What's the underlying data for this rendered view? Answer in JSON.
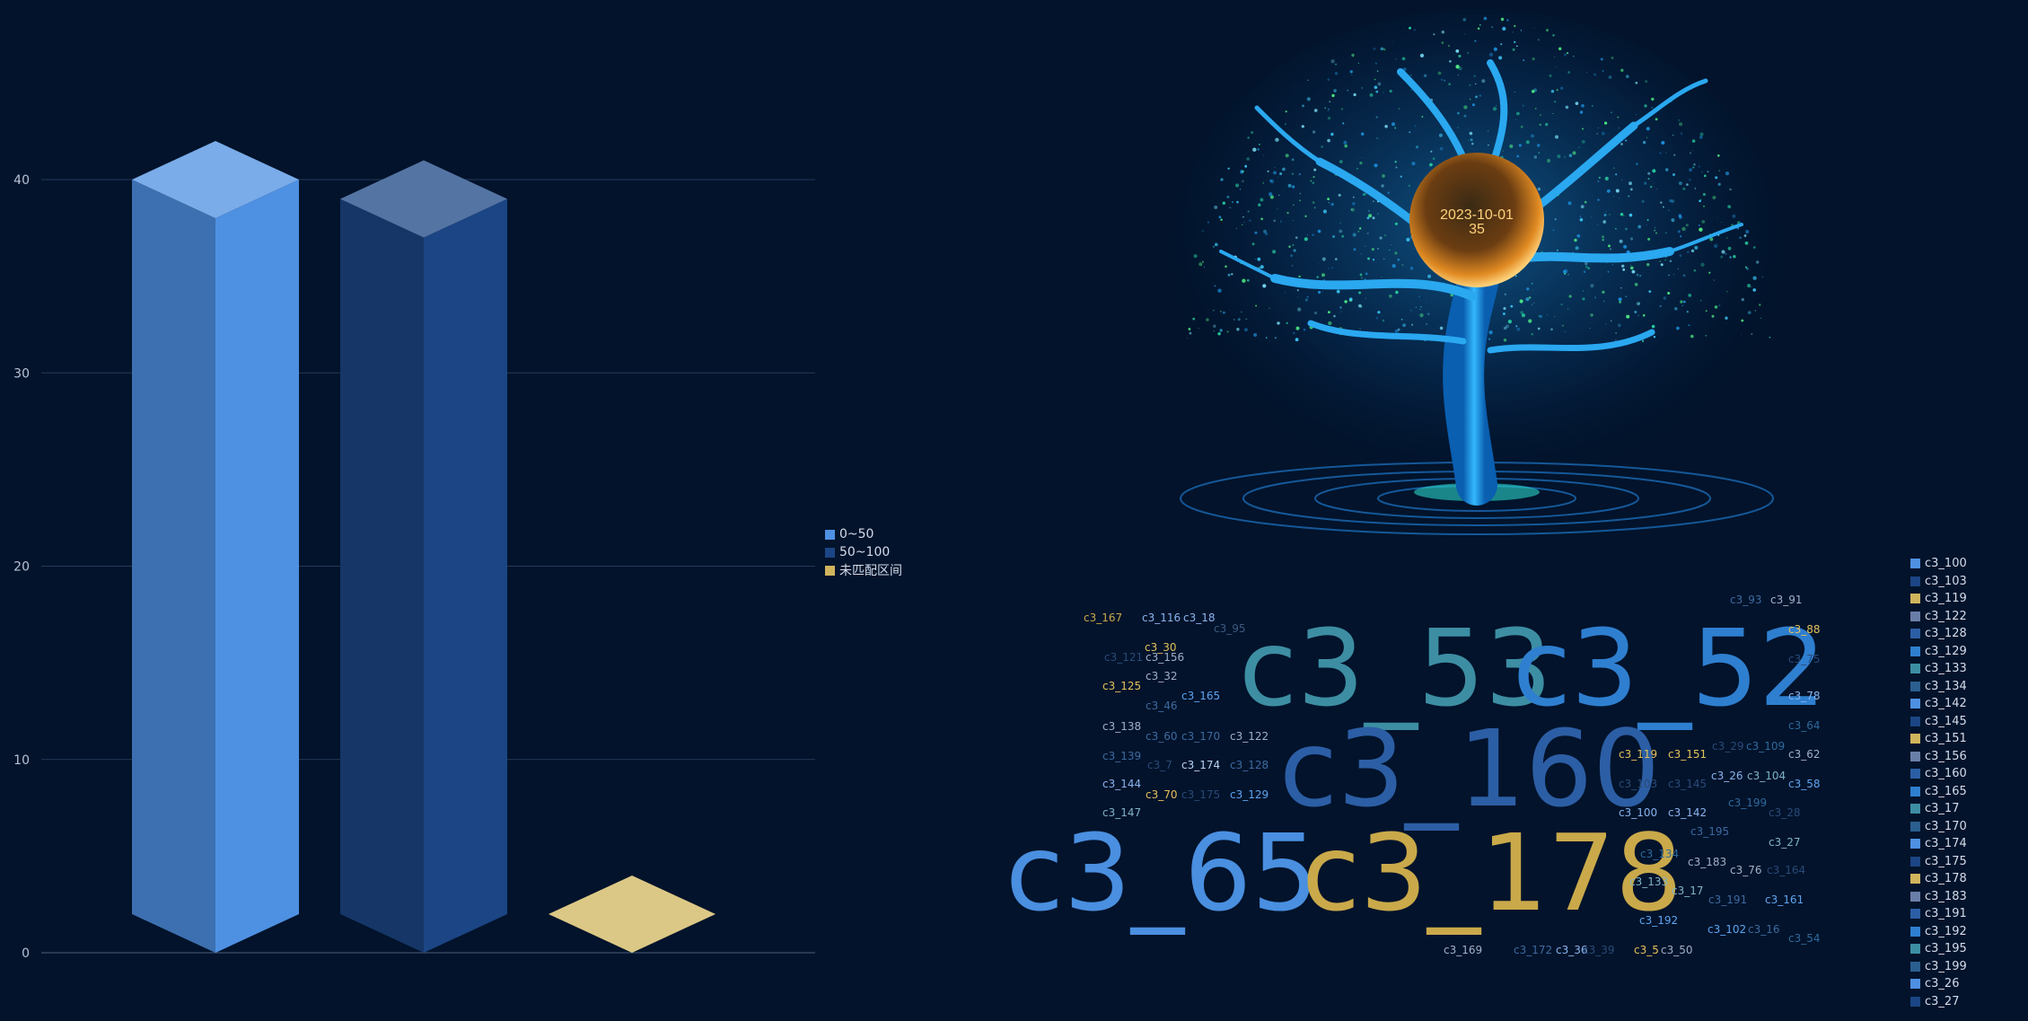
{
  "bar_chart": {
    "type": "bar",
    "categories": [
      "0~50",
      "50~100",
      "未匹配区间"
    ],
    "values": [
      40,
      39,
      2
    ],
    "ylim": [
      0,
      40
    ],
    "yticks": [
      "0",
      "10",
      "20",
      "30",
      "40"
    ],
    "grid": true,
    "legend": {
      "placement": "right",
      "items": [
        {
          "label": "0~50",
          "color": "#4e90e2"
        },
        {
          "label": "50~100",
          "color": "#1b4584"
        },
        {
          "label": "未匹配区间",
          "color": "#d0b55d"
        }
      ]
    }
  },
  "chart_data": {
    "type": "bar",
    "categories": [
      "0~50",
      "50~100",
      "未匹配区间"
    ],
    "values": [
      40,
      39,
      2
    ],
    "ylim": [
      0,
      40
    ]
  },
  "tree": {
    "date": "2023-10-01",
    "value": "35"
  },
  "word_cloud": {
    "words": [
      {
        "text": "c3_53",
        "size": 118,
        "color": "#3d8ea3"
      },
      {
        "text": "c3_52",
        "size": 118,
        "color": "#2f7fd0"
      },
      {
        "text": "c3_160",
        "size": 118,
        "color": "#2c5ea5"
      },
      {
        "text": "c3_65",
        "size": 118,
        "color": "#4a8fe0"
      },
      {
        "text": "c3_178",
        "size": 118,
        "color": "#c9a94a"
      },
      {
        "text": "c3_167",
        "size": 12,
        "color": "#c9a94a"
      },
      {
        "text": "c3_116",
        "size": 12,
        "color": "#8ab4f0"
      },
      {
        "text": "c3_18",
        "size": 12,
        "color": "#8ab4f0"
      },
      {
        "text": "c3_95",
        "size": 12,
        "color": "#3d5a80"
      },
      {
        "text": "c3_30",
        "size": 12,
        "color": "#e3c15a"
      },
      {
        "text": "c3_121",
        "size": 12,
        "color": "#2a4a78"
      },
      {
        "text": "c3_156",
        "size": 12,
        "color": "#9fb0c8"
      },
      {
        "text": "c3_32",
        "size": 12,
        "color": "#9fb0c8"
      },
      {
        "text": "c3_125",
        "size": 12,
        "color": "#e3c15a"
      },
      {
        "text": "c3_165",
        "size": 12,
        "color": "#5ea4f0"
      },
      {
        "text": "c3_46",
        "size": 12,
        "color": "#3d6aa0"
      },
      {
        "text": "c3_138",
        "size": 12,
        "color": "#9fb0c8"
      },
      {
        "text": "c3_60",
        "size": 12,
        "color": "#3d6aa0"
      },
      {
        "text": "c3_170",
        "size": 12,
        "color": "#3d6aa0"
      },
      {
        "text": "c3_122",
        "size": 12,
        "color": "#9fb0c8"
      },
      {
        "text": "c3_139",
        "size": 12,
        "color": "#3d6aa0"
      },
      {
        "text": "c3_7",
        "size": 12,
        "color": "#2a4a78"
      },
      {
        "text": "c3_174",
        "size": 12,
        "color": "#b8d2f5"
      },
      {
        "text": "c3_128",
        "size": 12,
        "color": "#3d6aa0"
      },
      {
        "text": "c3_144",
        "size": 12,
        "color": "#8ab4f0"
      },
      {
        "text": "c3_70",
        "size": 12,
        "color": "#e3c15a"
      },
      {
        "text": "c3_175",
        "size": 12,
        "color": "#2a4a78"
      },
      {
        "text": "c3_129",
        "size": 12,
        "color": "#5ea4f0"
      },
      {
        "text": "c3_147",
        "size": 12,
        "color": "#7fb3c8"
      },
      {
        "text": "c3_93",
        "size": 12,
        "color": "#3d6aa0"
      },
      {
        "text": "c3_91",
        "size": 12,
        "color": "#9fb0c8"
      },
      {
        "text": "c3_88",
        "size": 12,
        "color": "#e3c15a"
      },
      {
        "text": "c3_75",
        "size": 12,
        "color": "#2a4a78"
      },
      {
        "text": "c3_78",
        "size": 12,
        "color": "#8ab4f0"
      },
      {
        "text": "c3_64",
        "size": 12,
        "color": "#2f6a9c"
      },
      {
        "text": "c3_119",
        "size": 12,
        "color": "#e3c15a"
      },
      {
        "text": "c3_151",
        "size": 12,
        "color": "#e3c15a"
      },
      {
        "text": "c3_29",
        "size": 12,
        "color": "#2a4a78"
      },
      {
        "text": "c3_109",
        "size": 12,
        "color": "#2f6a9c"
      },
      {
        "text": "c3_62",
        "size": 12,
        "color": "#9fb0c8"
      },
      {
        "text": "c3_26",
        "size": 12,
        "color": "#8ab4f0"
      },
      {
        "text": "c3_104",
        "size": 12,
        "color": "#7fb3c8"
      },
      {
        "text": "c3_103",
        "size": 12,
        "color": "#2a4a78"
      },
      {
        "text": "c3_145",
        "size": 12,
        "color": "#2a4a78"
      },
      {
        "text": "c3_58",
        "size": 12,
        "color": "#5ea4f0"
      },
      {
        "text": "c3_199",
        "size": 12,
        "color": "#2f6a9c"
      },
      {
        "text": "c3_100",
        "size": 12,
        "color": "#8ab4f0"
      },
      {
        "text": "c3_142",
        "size": 12,
        "color": "#8ab4f0"
      },
      {
        "text": "c3_28",
        "size": 12,
        "color": "#2a4a78"
      },
      {
        "text": "c3_195",
        "size": 12,
        "color": "#3d6aa0"
      },
      {
        "text": "c3_27",
        "size": 12,
        "color": "#7fb3c8"
      },
      {
        "text": "c3_134",
        "size": 12,
        "color": "#2f6a9c"
      },
      {
        "text": "c3_183",
        "size": 12,
        "color": "#9fb0c8"
      },
      {
        "text": "c3_76",
        "size": 12,
        "color": "#9fb0c8"
      },
      {
        "text": "c3_164",
        "size": 12,
        "color": "#2a4a78"
      },
      {
        "text": "c3_133",
        "size": 12,
        "color": "#7fb3c8"
      },
      {
        "text": "c3_17",
        "size": 12,
        "color": "#7fb3c8"
      },
      {
        "text": "c3_191",
        "size": 12,
        "color": "#3d6aa0"
      },
      {
        "text": "c3_161",
        "size": 12,
        "color": "#5ea4f0"
      },
      {
        "text": "c3_192",
        "size": 12,
        "color": "#5ea4f0"
      },
      {
        "text": "c3_102",
        "size": 12,
        "color": "#5ea4f0"
      },
      {
        "text": "c3_16",
        "size": 12,
        "color": "#3d6aa0"
      },
      {
        "text": "c3_54",
        "size": 12,
        "color": "#2f6a9c"
      },
      {
        "text": "c3_169",
        "size": 12,
        "color": "#9fb0c8"
      },
      {
        "text": "c3_172",
        "size": 12,
        "color": "#3d6aa0"
      },
      {
        "text": "c3_36",
        "size": 12,
        "color": "#8ab4f0"
      },
      {
        "text": "c3_39",
        "size": 12,
        "color": "#2a4a78"
      },
      {
        "text": "c3_5",
        "size": 12,
        "color": "#e3c15a"
      },
      {
        "text": "c3_50",
        "size": 12,
        "color": "#9fb0c8"
      }
    ]
  },
  "cloud_legend": {
    "placement": "right",
    "items": [
      {
        "label": "c3_100",
        "color": "#4e90e2"
      },
      {
        "label": "c3_103",
        "color": "#1b4584"
      },
      {
        "label": "c3_119",
        "color": "#d0b55d"
      },
      {
        "label": "c3_122",
        "color": "#6a7fa8"
      },
      {
        "label": "c3_128",
        "color": "#2c5ea5"
      },
      {
        "label": "c3_129",
        "color": "#2f7fd0"
      },
      {
        "label": "c3_133",
        "color": "#3d8ea3"
      },
      {
        "label": "c3_134",
        "color": "#2a5f8f"
      },
      {
        "label": "c3_142",
        "color": "#4e90e2"
      },
      {
        "label": "c3_145",
        "color": "#1b4584"
      },
      {
        "label": "c3_151",
        "color": "#d0b55d"
      },
      {
        "label": "c3_156",
        "color": "#6a7fa8"
      },
      {
        "label": "c3_160",
        "color": "#2c5ea5"
      },
      {
        "label": "c3_165",
        "color": "#2f7fd0"
      },
      {
        "label": "c3_17",
        "color": "#3d8ea3"
      },
      {
        "label": "c3_170",
        "color": "#2a5f8f"
      },
      {
        "label": "c3_174",
        "color": "#4e90e2"
      },
      {
        "label": "c3_175",
        "color": "#1b4584"
      },
      {
        "label": "c3_178",
        "color": "#d0b55d"
      },
      {
        "label": "c3_183",
        "color": "#6a7fa8"
      },
      {
        "label": "c3_191",
        "color": "#2c5ea5"
      },
      {
        "label": "c3_192",
        "color": "#2f7fd0"
      },
      {
        "label": "c3_195",
        "color": "#3d8ea3"
      },
      {
        "label": "c3_199",
        "color": "#2a5f8f"
      },
      {
        "label": "c3_26",
        "color": "#4e90e2"
      },
      {
        "label": "c3_27",
        "color": "#1b4584"
      }
    ]
  }
}
